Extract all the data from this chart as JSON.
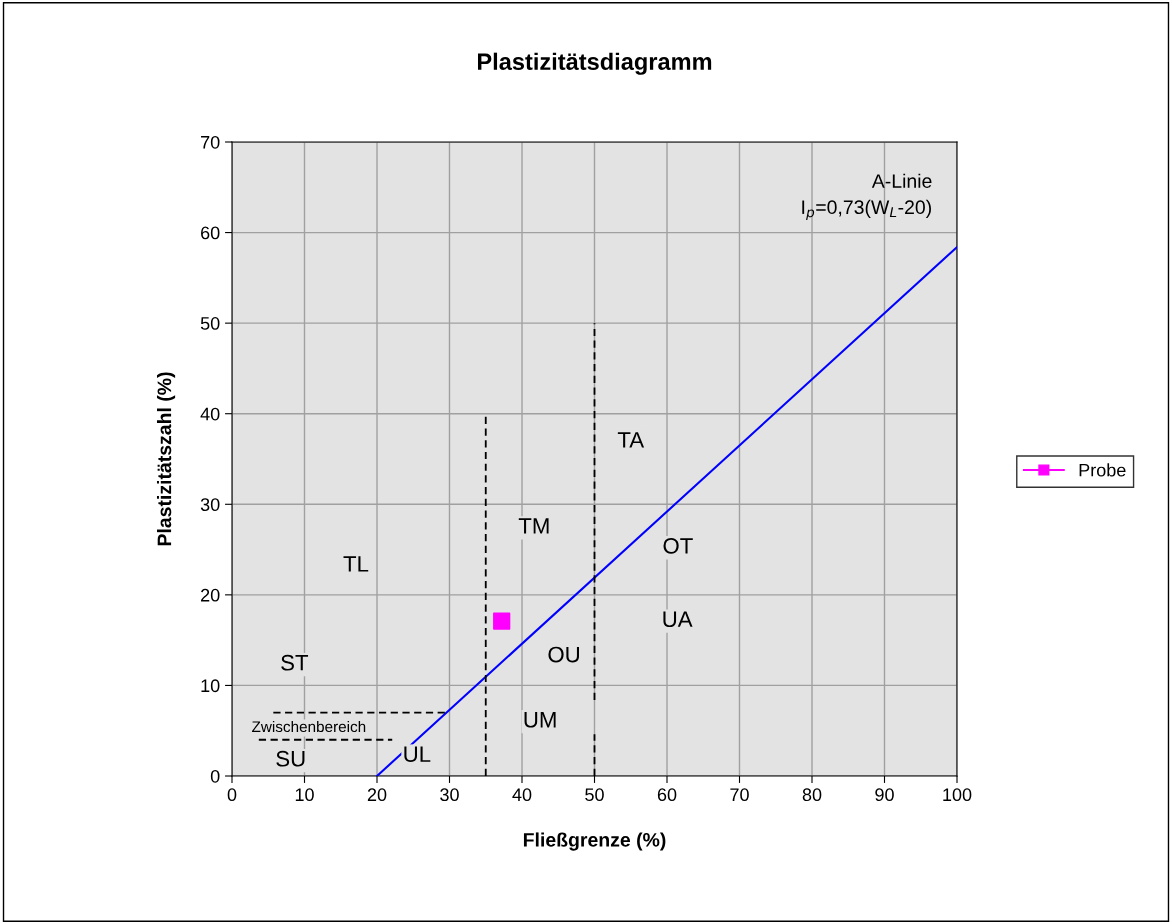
{
  "chart_data": {
    "type": "scatter",
    "title": "Plastizitätsdiagramm",
    "xlabel": "Fließgrenze (%)",
    "ylabel": "Plastizitätszahl (%)",
    "xlim": [
      0,
      100
    ],
    "xticks": [
      0,
      10,
      20,
      30,
      40,
      50,
      60,
      70,
      80,
      90,
      100
    ],
    "ylim": [
      0,
      70
    ],
    "yticks": [
      0,
      10,
      20,
      30,
      40,
      50,
      60,
      70
    ],
    "grid": true,
    "legend": "right",
    "series": [
      {
        "type": "line",
        "color": "#0000ff",
        "x": [
          20,
          100
        ],
        "values": [
          0,
          58.4
        ],
        "line_style": "solid",
        "marker": "none"
      },
      {
        "type": "line",
        "color": "#000000",
        "x": [
          35,
          35
        ],
        "values": [
          0,
          40
        ],
        "line_style": "dashed",
        "marker": "none"
      },
      {
        "type": "line",
        "color": "#000000",
        "x": [
          50,
          50
        ],
        "values": [
          0,
          4.6
        ],
        "line_style": "dashed",
        "marker": "none"
      },
      {
        "type": "line",
        "color": "#000000",
        "x": [
          50,
          50
        ],
        "values": [
          8.4,
          50
        ],
        "line_style": "dashed",
        "marker": "none"
      },
      {
        "type": "line",
        "color": "#000000",
        "x": [
          5.7,
          29.4
        ],
        "values": [
          7,
          7
        ],
        "line_style": "dashed",
        "marker": "none"
      },
      {
        "type": "line",
        "color": "#000000",
        "x": [
          3.7,
          22.1
        ],
        "values": [
          4,
          4
        ],
        "line_style": "dashed",
        "marker": "none"
      },
      {
        "name": "Probe",
        "color": "#ff00ff",
        "x": [
          37.2
        ],
        "values": [
          17.1
        ],
        "marker": "square"
      }
    ],
    "annotations": [
      {
        "text": "TL",
        "x": 17.1,
        "y": 23.2
      },
      {
        "text": "ST",
        "x": 8.6,
        "y": 12.3
      },
      "Zwischenbereich",
      {
        "text": "SU",
        "x": 8.1,
        "y": 1.7
      },
      {
        "text": "UL",
        "x": 25.5,
        "y": 2.2
      },
      {
        "text": "UM",
        "x": 42.5,
        "y": 6.0
      },
      {
        "text": "OU",
        "x": 45.8,
        "y": 13.2
      },
      {
        "text": "TM",
        "x": 41.7,
        "y": 27.4
      },
      {
        "text": "TA",
        "x": 55.0,
        "y": 36.9
      },
      {
        "text": "OT",
        "x": 61.5,
        "y": 25.2
      },
      {
        "text": "UA",
        "x": 61.4,
        "y": 17.1
      },
      "A-Linie",
      "I$_{p}$=0,73(W$_{L}$-20)"
    ]
  }
}
